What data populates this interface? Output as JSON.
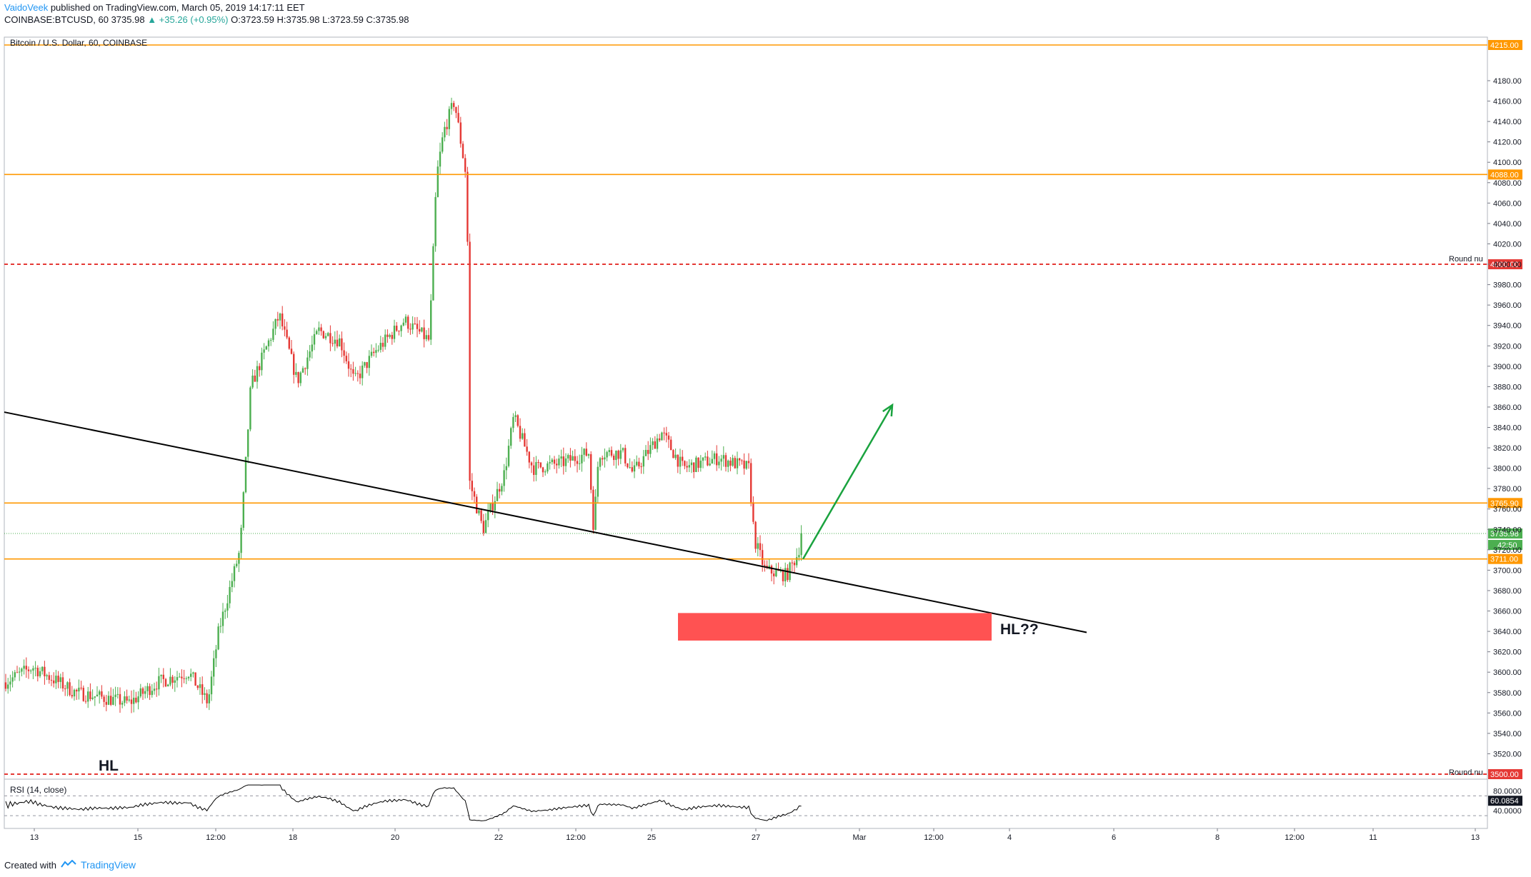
{
  "header": {
    "author": "VaidoVeek",
    "published": "published on TradingView.com, March 05, 2019 14:17:11 EET",
    "symbol": "COINBASE:BTCUSD, 60",
    "last": "3735.98",
    "change": "▲ +35.26 (+0.95%)",
    "ohlc": "O:3723.59 H:3735.98 L:3723.59 C:3735.98"
  },
  "pane_title": "Bitcoin / U.S. Dollar, 60, COINBASE",
  "rsi_title": "RSI (14, close)",
  "annotations": {
    "hl_left": "HL",
    "hl_right": "HL??",
    "round_label_top": "Round nu",
    "round_label_bottom": "Round nu"
  },
  "footer": {
    "created": "Created with",
    "brand": "TradingView"
  },
  "colors": {
    "up": "#4caf50",
    "down": "#e53935",
    "level": "#ff9800",
    "round_level": "#e53935",
    "zone": "#ff5252",
    "arrow": "#1aa33f",
    "trendline": "#000000",
    "rsi": "#000000",
    "current_price": "#4caf50"
  },
  "chart_data": {
    "type": "candlestick",
    "title": "Bitcoin / U.S. Dollar, 60, COINBASE",
    "ylim": [
      3500,
      4230
    ],
    "y_ticks": [
      3520,
      3540,
      3560,
      3580,
      3600,
      3620,
      3640,
      3660,
      3680,
      3700,
      3720,
      3740,
      3760,
      3780,
      3800,
      3820,
      3840,
      3860,
      3880,
      3900,
      3920,
      3940,
      3960,
      3980,
      4000,
      4020,
      4040,
      4060,
      4080,
      4100,
      4120,
      4140,
      4160,
      4180
    ],
    "x_ticks": [
      "13",
      "15",
      "12:00",
      "18",
      "20",
      "22",
      "12:00",
      "25",
      "27",
      "Mar",
      "12:00",
      "4",
      "6",
      "8",
      "12:00",
      "11",
      "13"
    ],
    "price_anchors": [
      {
        "t": 0,
        "p": 3590
      },
      {
        "t": 40,
        "p": 3605
      },
      {
        "t": 100,
        "p": 3580
      },
      {
        "t": 175,
        "p": 3570
      },
      {
        "t": 215,
        "p": 3590
      },
      {
        "t": 258,
        "p": 3600
      },
      {
        "t": 285,
        "p": 3570
      },
      {
        "t": 300,
        "p": 3640
      },
      {
        "t": 330,
        "p": 3720
      },
      {
        "t": 345,
        "p": 3880
      },
      {
        "t": 385,
        "p": 3950
      },
      {
        "t": 410,
        "p": 3885
      },
      {
        "t": 440,
        "p": 3935
      },
      {
        "t": 470,
        "p": 3925
      },
      {
        "t": 490,
        "p": 3885
      },
      {
        "t": 520,
        "p": 3915
      },
      {
        "t": 560,
        "p": 3945
      },
      {
        "t": 595,
        "p": 3925
      },
      {
        "t": 605,
        "p": 4085
      },
      {
        "t": 615,
        "p": 4130
      },
      {
        "t": 630,
        "p": 4160
      },
      {
        "t": 648,
        "p": 4080
      },
      {
        "t": 650,
        "p": 3790
      },
      {
        "t": 670,
        "p": 3740
      },
      {
        "t": 700,
        "p": 3795
      },
      {
        "t": 713,
        "p": 3850
      },
      {
        "t": 740,
        "p": 3800
      },
      {
        "t": 780,
        "p": 3805
      },
      {
        "t": 818,
        "p": 3815
      },
      {
        "t": 825,
        "p": 3740
      },
      {
        "t": 832,
        "p": 3815
      },
      {
        "t": 865,
        "p": 3815
      },
      {
        "t": 880,
        "p": 3795
      },
      {
        "t": 920,
        "p": 3835
      },
      {
        "t": 950,
        "p": 3800
      },
      {
        "t": 1000,
        "p": 3810
      },
      {
        "t": 1042,
        "p": 3800
      },
      {
        "t": 1050,
        "p": 3730
      },
      {
        "t": 1065,
        "p": 3700
      },
      {
        "t": 1095,
        "p": 3695
      },
      {
        "t": 1110,
        "p": 3715
      },
      {
        "t": 1118,
        "p": 3736
      }
    ],
    "last_price": 3735.98,
    "levels": [
      {
        "price": 4215.0,
        "label": "4215.00",
        "style": "solid"
      },
      {
        "price": 4088.0,
        "label": "4088.00",
        "style": "solid"
      },
      {
        "price": 4000.0,
        "label": "4000.00",
        "style": "dashed"
      },
      {
        "price": 3765.9,
        "label": "3765.90",
        "style": "solid"
      },
      {
        "price": 3711.0,
        "label": "3711.00",
        "style": "solid"
      },
      {
        "price": 3500.0,
        "label": "3500.00",
        "style": "dashed"
      }
    ],
    "last_label": "3735.98",
    "countdown_label": "42:50",
    "trendline": {
      "p1": {
        "t": 0,
        "p": 3855
      },
      "p2": {
        "t": 1515,
        "p": 3639
      }
    },
    "zone": {
      "t1": 943,
      "t2": 1382,
      "p1": 3658,
      "p2": 3631
    },
    "arrow": {
      "from": {
        "t": 1118,
        "p": 3711
      },
      "to": {
        "t": 1243,
        "p": 3862
      }
    },
    "rsi": {
      "title": "RSI (14, close)",
      "ticks": [
        "80.0000",
        "40.0000"
      ],
      "value_label": "60.0854",
      "bands": [
        70,
        30
      ],
      "ylim": [
        10,
        95
      ]
    }
  }
}
